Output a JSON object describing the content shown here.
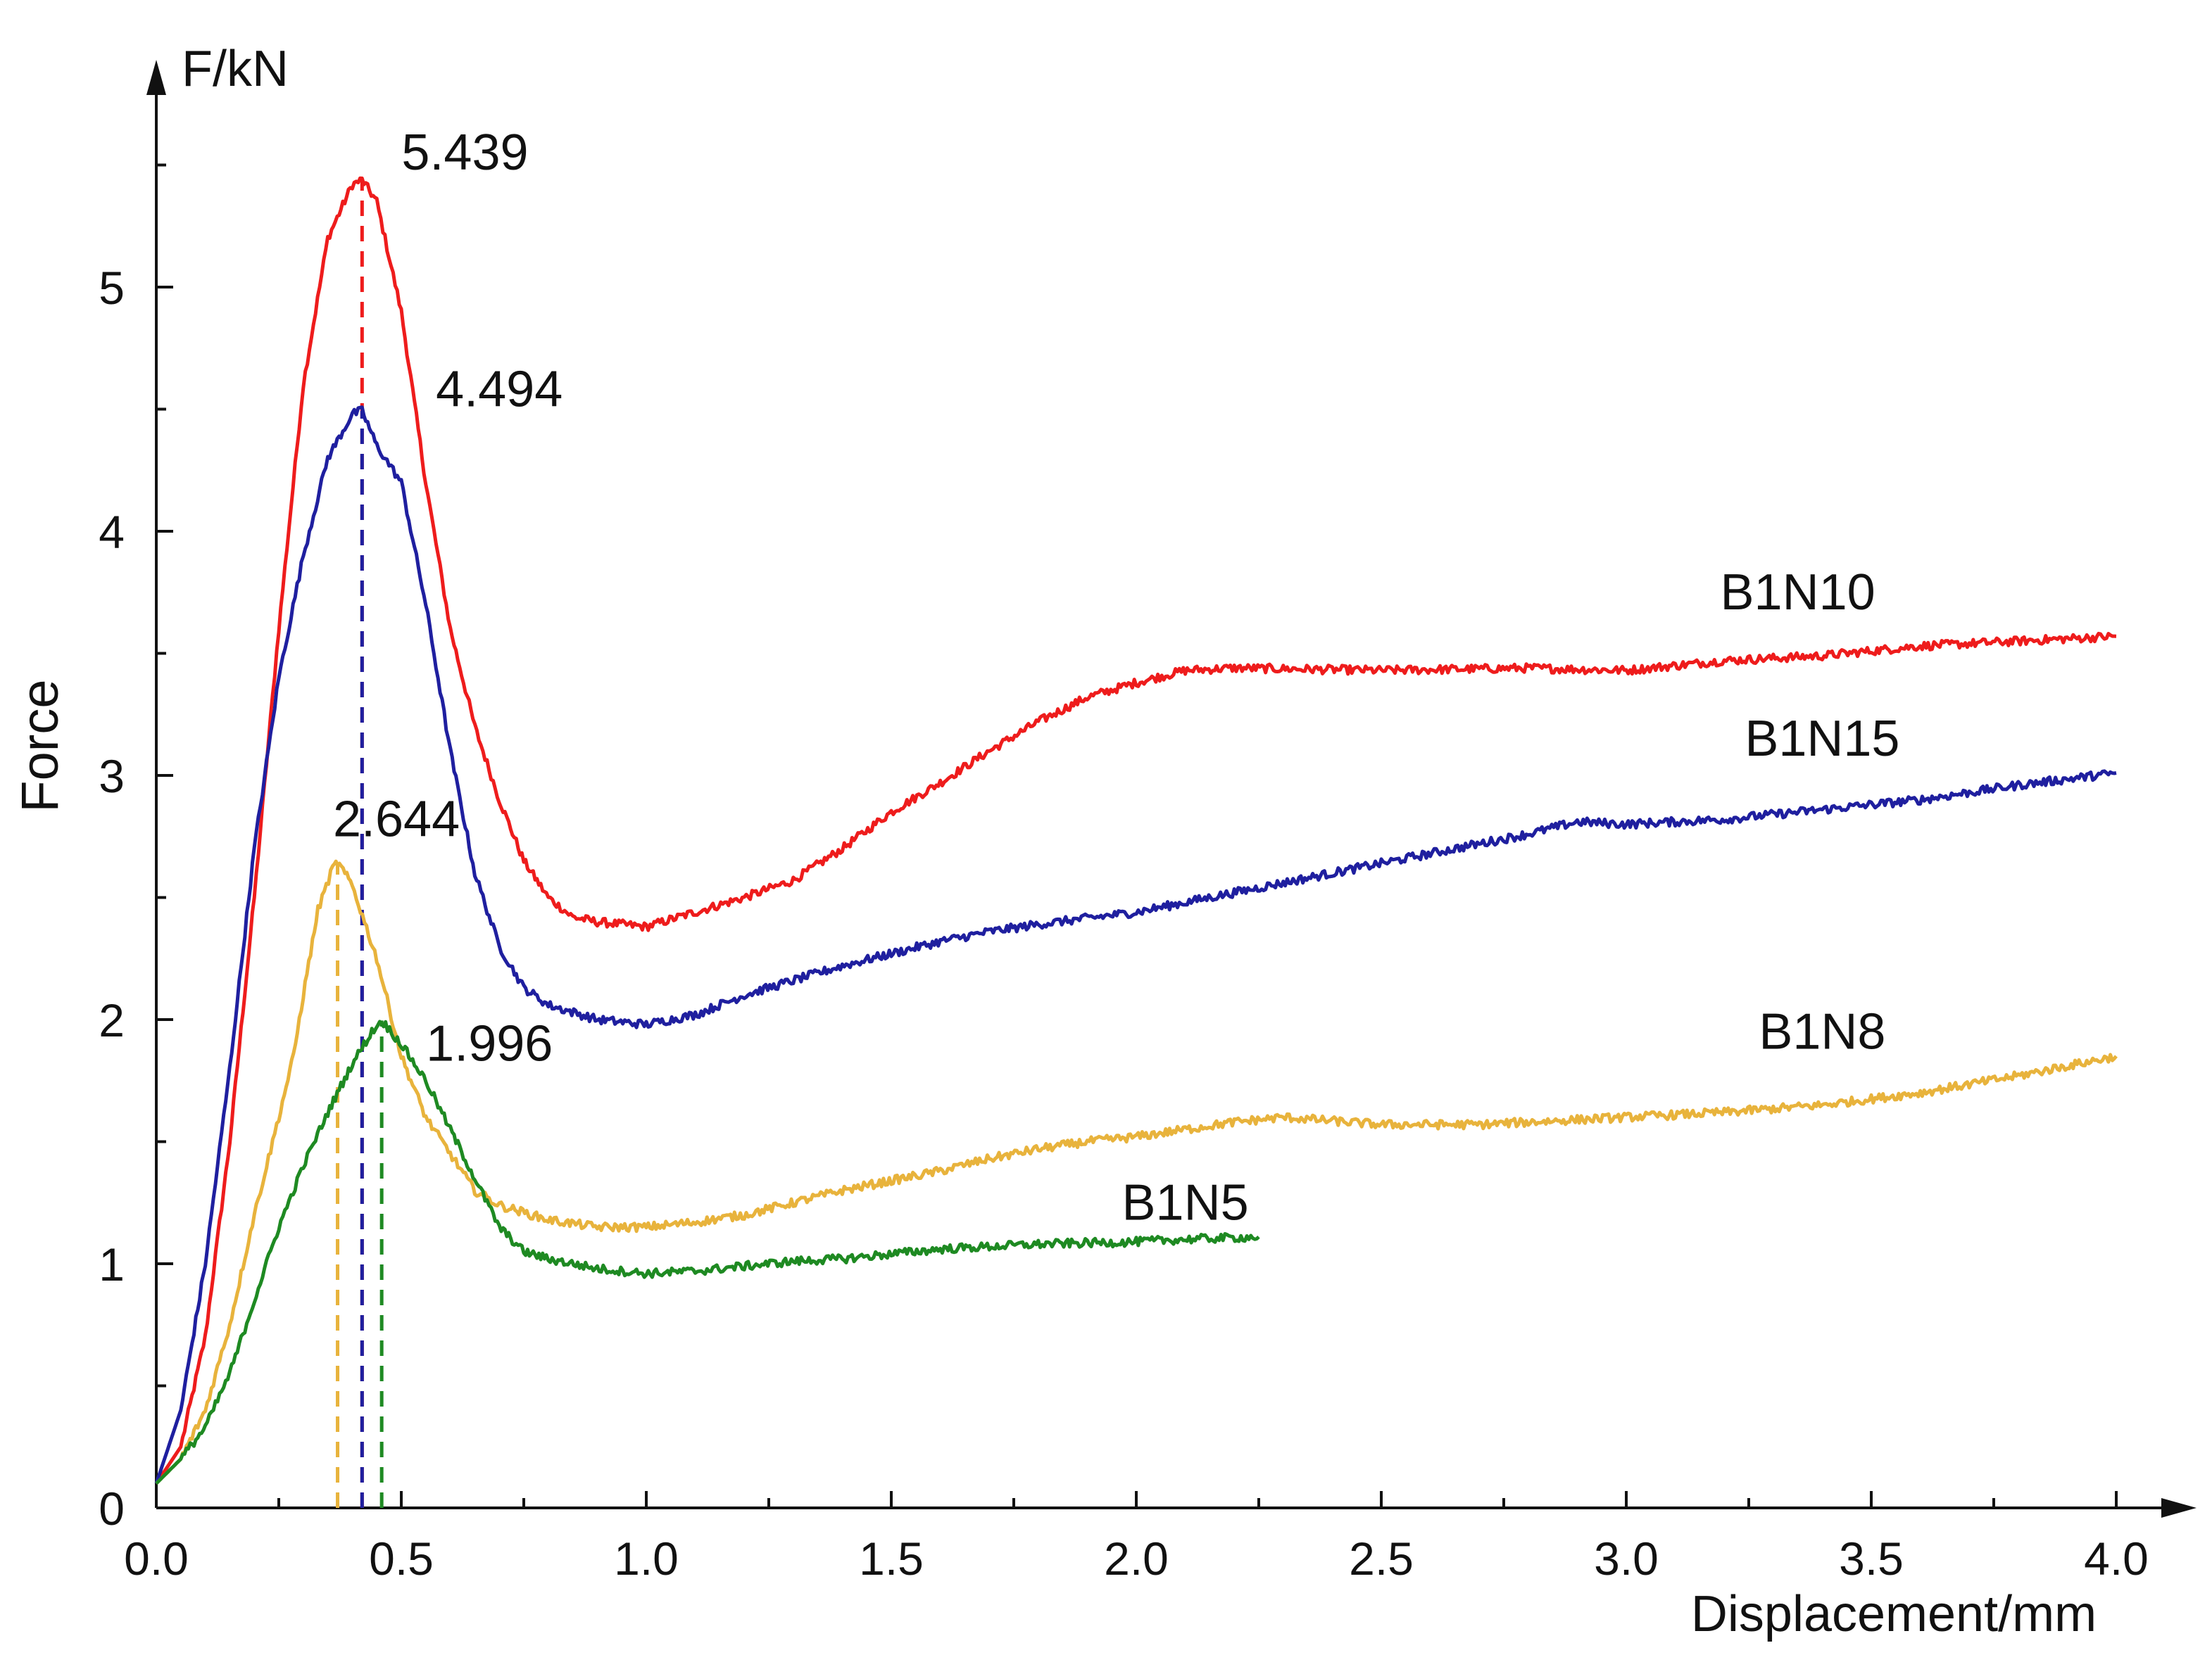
{
  "chart_data": {
    "type": "line",
    "title": "",
    "xlabel": "Displacement/mm",
    "ylabel": "Force",
    "yunit_label": "F/kN",
    "xlim": [
      0,
      4.1
    ],
    "ylim": [
      0,
      5.85
    ],
    "xticks": [
      "0.0",
      "0.5",
      "1.0",
      "1.5",
      "2.0",
      "2.5",
      "3.0",
      "3.5",
      "4.0"
    ],
    "yticks": [
      "0",
      "1",
      "2",
      "3",
      "4",
      "5"
    ],
    "grid": false,
    "legend": "none",
    "series": [
      {
        "name": "B1N10",
        "color": "#ee1c1c",
        "points": [
          [
            0,
            0.1
          ],
          [
            0.05,
            0.25
          ],
          [
            0.1,
            0.7
          ],
          [
            0.15,
            1.5
          ],
          [
            0.2,
            2.5
          ],
          [
            0.25,
            3.6
          ],
          [
            0.3,
            4.6
          ],
          [
            0.35,
            5.2
          ],
          [
            0.4,
            5.42
          ],
          [
            0.42,
            5.439
          ],
          [
            0.45,
            5.35
          ],
          [
            0.5,
            4.9
          ],
          [
            0.55,
            4.2
          ],
          [
            0.6,
            3.6
          ],
          [
            0.65,
            3.2
          ],
          [
            0.7,
            2.9
          ],
          [
            0.75,
            2.65
          ],
          [
            0.8,
            2.5
          ],
          [
            0.85,
            2.42
          ],
          [
            0.9,
            2.4
          ],
          [
            1.0,
            2.38
          ],
          [
            1.1,
            2.44
          ],
          [
            1.2,
            2.5
          ],
          [
            1.3,
            2.57
          ],
          [
            1.4,
            2.7
          ],
          [
            1.5,
            2.85
          ],
          [
            1.6,
            2.97
          ],
          [
            1.7,
            3.1
          ],
          [
            1.8,
            3.22
          ],
          [
            1.9,
            3.32
          ],
          [
            2.0,
            3.38
          ],
          [
            2.1,
            3.43
          ],
          [
            2.2,
            3.44
          ],
          [
            2.5,
            3.43
          ],
          [
            2.8,
            3.44
          ],
          [
            3.0,
            3.43
          ],
          [
            3.2,
            3.47
          ],
          [
            3.4,
            3.49
          ],
          [
            3.6,
            3.53
          ],
          [
            3.8,
            3.55
          ],
          [
            4.0,
            3.57
          ]
        ]
      },
      {
        "name": "B1N15",
        "color": "#1f1f9f",
        "points": [
          [
            0,
            0.1
          ],
          [
            0.05,
            0.4
          ],
          [
            0.1,
            1.0
          ],
          [
            0.15,
            1.8
          ],
          [
            0.2,
            2.7
          ],
          [
            0.25,
            3.4
          ],
          [
            0.3,
            3.9
          ],
          [
            0.35,
            4.3
          ],
          [
            0.4,
            4.48
          ],
          [
            0.42,
            4.494
          ],
          [
            0.45,
            4.35
          ],
          [
            0.5,
            4.2
          ],
          [
            0.55,
            3.7
          ],
          [
            0.6,
            3.1
          ],
          [
            0.65,
            2.6
          ],
          [
            0.7,
            2.3
          ],
          [
            0.75,
            2.13
          ],
          [
            0.8,
            2.06
          ],
          [
            0.9,
            2.0
          ],
          [
            1.0,
            1.98
          ],
          [
            1.1,
            2.02
          ],
          [
            1.2,
            2.1
          ],
          [
            1.3,
            2.16
          ],
          [
            1.4,
            2.22
          ],
          [
            1.5,
            2.27
          ],
          [
            1.6,
            2.32
          ],
          [
            1.7,
            2.36
          ],
          [
            1.8,
            2.39
          ],
          [
            2.0,
            2.44
          ],
          [
            2.2,
            2.52
          ],
          [
            2.4,
            2.6
          ],
          [
            2.6,
            2.68
          ],
          [
            2.8,
            2.76
          ],
          [
            2.9,
            2.81
          ],
          [
            3.0,
            2.8
          ],
          [
            3.2,
            2.82
          ],
          [
            3.4,
            2.86
          ],
          [
            3.6,
            2.9
          ],
          [
            3.8,
            2.96
          ],
          [
            4.0,
            3.01
          ]
        ]
      },
      {
        "name": "B1N8",
        "color": "#e8b33c",
        "points": [
          [
            0,
            0.1
          ],
          [
            0.05,
            0.2
          ],
          [
            0.1,
            0.4
          ],
          [
            0.15,
            0.75
          ],
          [
            0.2,
            1.2
          ],
          [
            0.25,
            1.6
          ],
          [
            0.28,
            1.85
          ],
          [
            0.3,
            2.1
          ],
          [
            0.33,
            2.45
          ],
          [
            0.36,
            2.62
          ],
          [
            0.37,
            2.644
          ],
          [
            0.4,
            2.55
          ],
          [
            0.45,
            2.25
          ],
          [
            0.5,
            1.85
          ],
          [
            0.55,
            1.6
          ],
          [
            0.6,
            1.45
          ],
          [
            0.65,
            1.3
          ],
          [
            0.7,
            1.24
          ],
          [
            0.8,
            1.18
          ],
          [
            0.9,
            1.15
          ],
          [
            1.0,
            1.15
          ],
          [
            1.1,
            1.17
          ],
          [
            1.2,
            1.2
          ],
          [
            1.3,
            1.25
          ],
          [
            1.4,
            1.3
          ],
          [
            1.5,
            1.34
          ],
          [
            1.6,
            1.38
          ],
          [
            1.7,
            1.43
          ],
          [
            1.8,
            1.47
          ],
          [
            1.9,
            1.5
          ],
          [
            2.0,
            1.52
          ],
          [
            2.1,
            1.55
          ],
          [
            2.2,
            1.58
          ],
          [
            2.3,
            1.6
          ],
          [
            2.5,
            1.57
          ],
          [
            2.7,
            1.57
          ],
          [
            3.0,
            1.6
          ],
          [
            3.2,
            1.62
          ],
          [
            3.4,
            1.65
          ],
          [
            3.6,
            1.7
          ],
          [
            3.8,
            1.77
          ],
          [
            4.0,
            1.85
          ]
        ]
      },
      {
        "name": "B1N5",
        "color": "#1e8a22",
        "points": [
          [
            0,
            0.1
          ],
          [
            0.05,
            0.2
          ],
          [
            0.1,
            0.33
          ],
          [
            0.15,
            0.55
          ],
          [
            0.2,
            0.85
          ],
          [
            0.25,
            1.15
          ],
          [
            0.3,
            1.4
          ],
          [
            0.35,
            1.62
          ],
          [
            0.4,
            1.82
          ],
          [
            0.44,
            1.95
          ],
          [
            0.46,
            1.996
          ],
          [
            0.5,
            1.9
          ],
          [
            0.55,
            1.75
          ],
          [
            0.6,
            1.55
          ],
          [
            0.65,
            1.35
          ],
          [
            0.7,
            1.15
          ],
          [
            0.75,
            1.05
          ],
          [
            0.8,
            1.02
          ],
          [
            0.9,
            0.98
          ],
          [
            1.0,
            0.96
          ],
          [
            1.1,
            0.97
          ],
          [
            1.2,
            0.99
          ],
          [
            1.3,
            1.01
          ],
          [
            1.4,
            1.02
          ],
          [
            1.5,
            1.04
          ],
          [
            1.6,
            1.06
          ],
          [
            1.7,
            1.07
          ],
          [
            1.8,
            1.08
          ],
          [
            2.0,
            1.09
          ],
          [
            2.1,
            1.1
          ],
          [
            2.25,
            1.11
          ]
        ]
      }
    ],
    "series_labels": [
      {
        "text": "B1N10",
        "x": 3.35,
        "y": 3.75
      },
      {
        "text": "B1N15",
        "x": 3.4,
        "y": 3.15
      },
      {
        "text": "B1N8",
        "x": 3.4,
        "y": 1.95
      },
      {
        "text": "B1N5",
        "x": 2.1,
        "y": 1.25
      }
    ],
    "peaks": [
      {
        "series": "B1N10",
        "x": 0.42,
        "y": 5.439,
        "label": "5.439",
        "color": "#ee1c1c",
        "label_x": 0.63,
        "label_y": 5.55
      },
      {
        "series": "B1N15",
        "x": 0.42,
        "y": 4.494,
        "label": "4.494",
        "color": "#1f1f9f",
        "label_x": 0.7,
        "label_y": 4.58
      },
      {
        "series": "B1N8",
        "x": 0.37,
        "y": 2.644,
        "label": "2.644",
        "color": "#e8b33c",
        "label_x": 0.49,
        "label_y": 2.82
      },
      {
        "series": "B1N5",
        "x": 0.46,
        "y": 1.996,
        "label": "1.996",
        "color": "#1e8a22",
        "label_x": 0.68,
        "label_y": 1.9
      }
    ]
  }
}
